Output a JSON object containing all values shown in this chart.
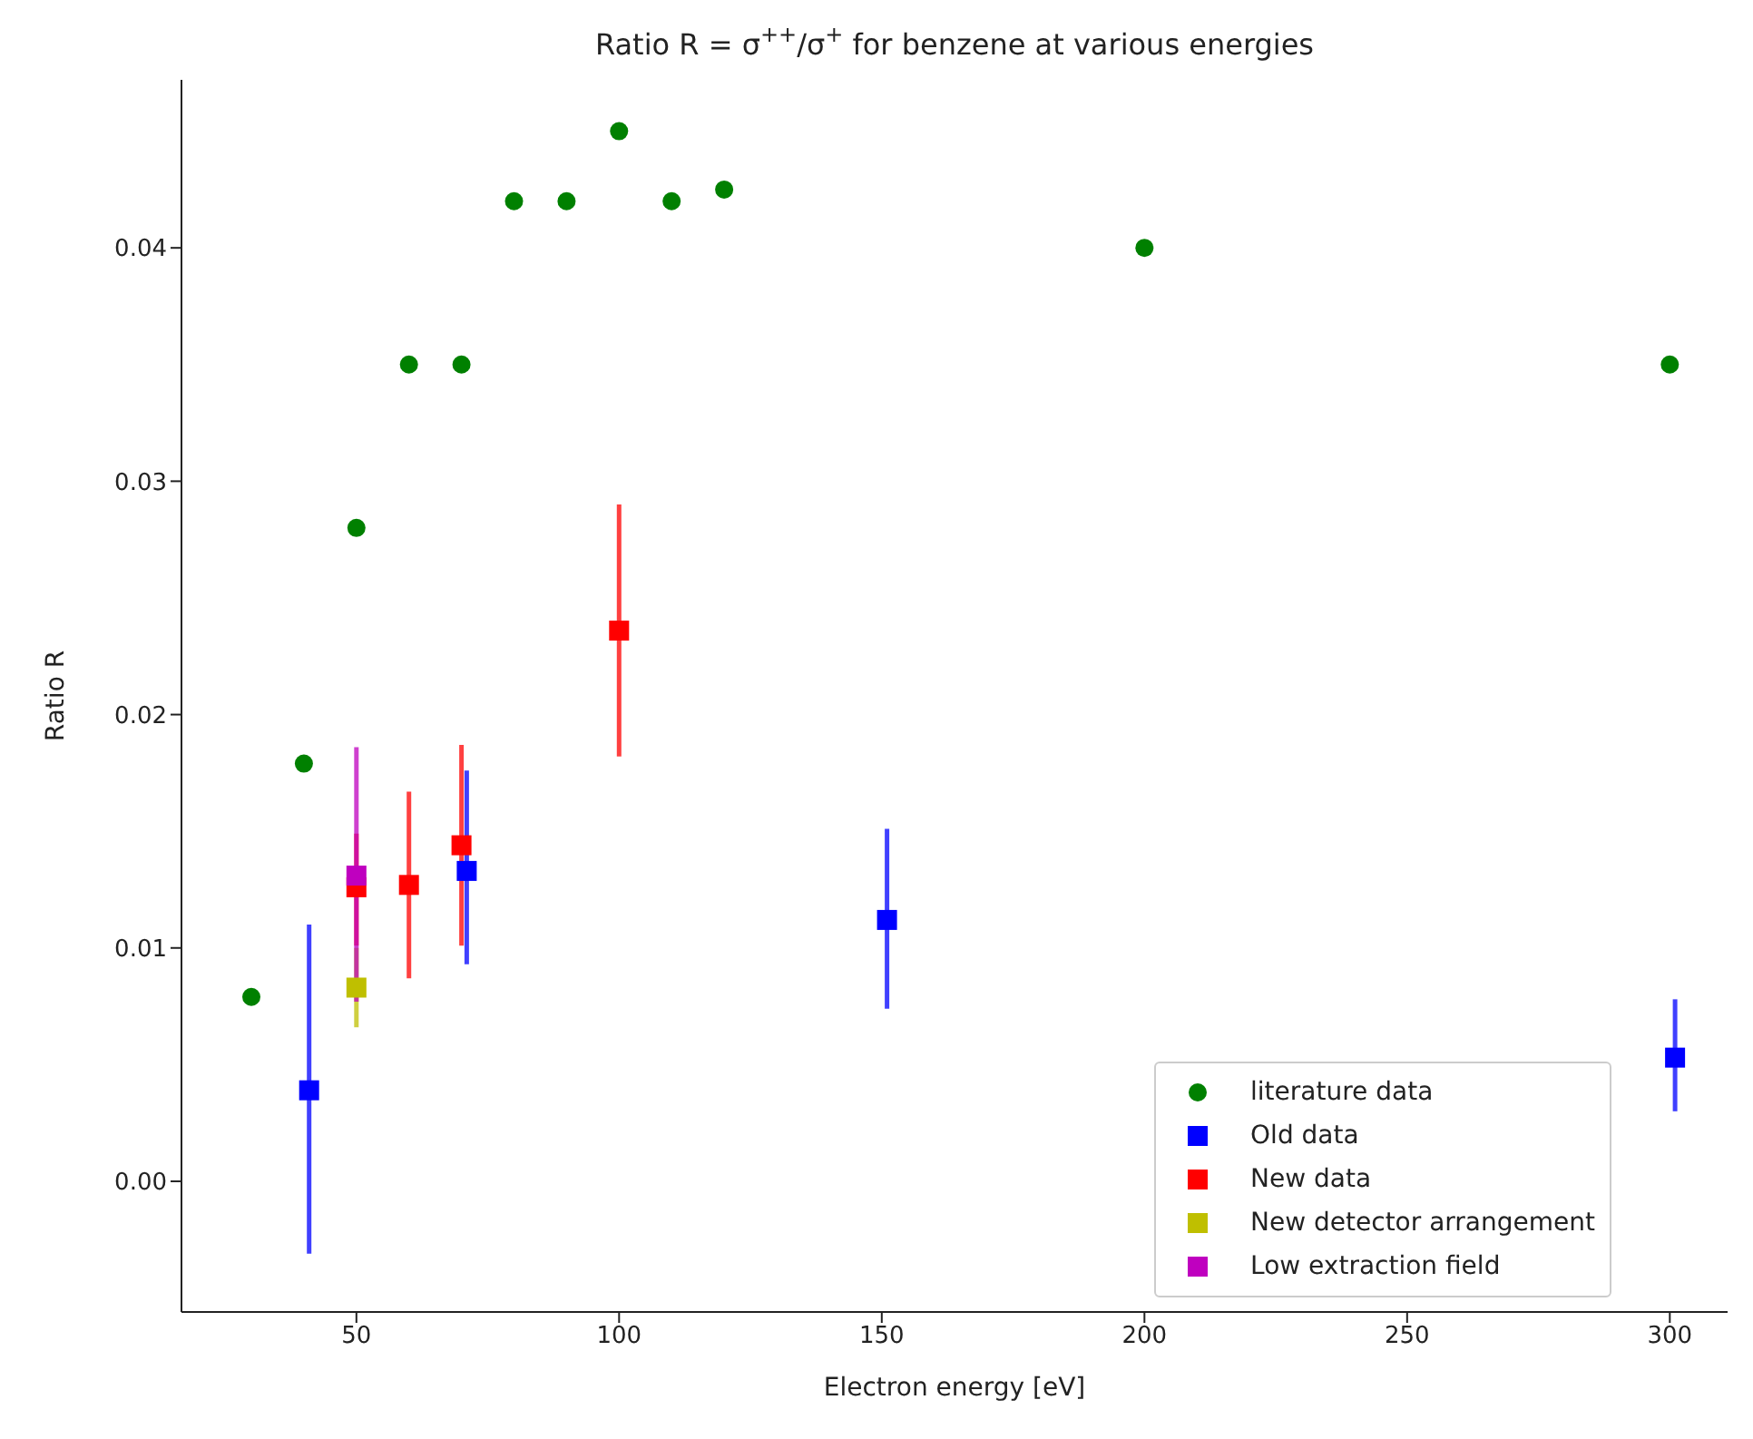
{
  "chart_data": {
    "type": "scatter",
    "title": "Ratio R = σ$^{++}$/σ$^{+}$ for benzene at various energies",
    "xlabel": "Electron energy [eV]",
    "ylabel": "Ratio R",
    "xlim": [
      16.7,
      311
    ],
    "xticks": [
      50,
      100,
      150,
      200,
      250,
      300
    ],
    "ylim": [
      -0.0056,
      0.0472
    ],
    "yticks": [
      {
        "value": 0,
        "label": "0.00"
      },
      {
        "value": 0.01,
        "label": "0.01"
      },
      {
        "value": 0.02,
        "label": "0.02"
      },
      {
        "value": 0.03,
        "label": "0.03"
      },
      {
        "value": 0.04,
        "label": "0.04"
      }
    ],
    "grid": false,
    "legend": "bottom right",
    "series": [
      {
        "name": "literature data",
        "color": "#008000",
        "marker": "circle",
        "x": [
          30,
          40,
          50,
          60,
          70,
          80,
          90,
          100,
          110,
          120,
          200,
          300
        ],
        "values": [
          0.0079,
          0.0179,
          0.028,
          0.035,
          0.035,
          0.042,
          0.042,
          0.045,
          0.042,
          0.0425,
          0.04,
          0.035
        ]
      },
      {
        "name": "Old data",
        "color": "#0000ff",
        "marker": "square",
        "x": [
          41,
          71,
          151,
          301
        ],
        "values": [
          0.0039,
          0.0133,
          0.0112,
          0.0053
        ],
        "errors": [
          [
            -0.0031,
            0.011
          ],
          [
            0.0093,
            0.0176
          ],
          [
            0.0074,
            0.0151
          ],
          [
            0.003,
            0.0078
          ]
        ]
      },
      {
        "name": "New data",
        "color": "#ff0000",
        "marker": "square",
        "x": [
          50,
          60,
          70,
          100
        ],
        "values": [
          0.0126,
          0.0127,
          0.0144,
          0.0236
        ],
        "errors": [
          [
            0.0101,
            0.0149
          ],
          [
            0.0087,
            0.0167
          ],
          [
            0.0101,
            0.0187
          ],
          [
            0.0182,
            0.029
          ]
        ]
      },
      {
        "name": "New detector arrangement",
        "color": "#bfbf00",
        "marker": "square",
        "x": [
          50
        ],
        "values": [
          0.0083
        ],
        "errors": [
          [
            0.0066,
            0.01
          ]
        ]
      },
      {
        "name": "Low extraction field",
        "color": "#bf00bf",
        "marker": "square",
        "x": [
          50
        ],
        "values": [
          0.0131
        ],
        "errors": [
          [
            0.0077,
            0.0186
          ]
        ]
      }
    ]
  }
}
